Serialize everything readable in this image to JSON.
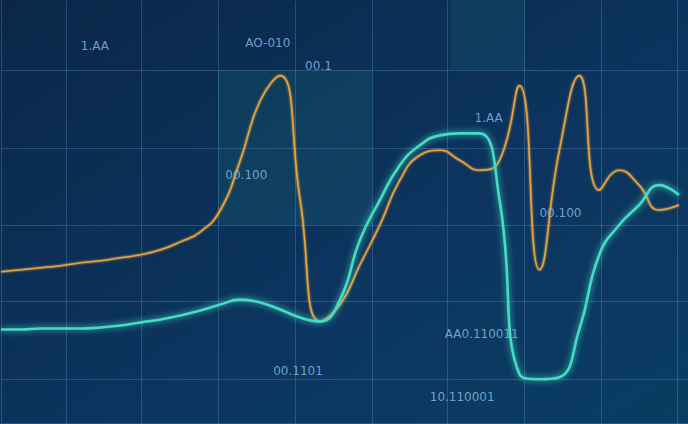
{
  "chart_data": {
    "type": "line",
    "x": [
      0,
      20,
      40,
      60,
      80,
      100,
      120,
      140,
      160,
      180,
      200,
      220,
      240,
      260,
      280,
      300,
      320,
      340,
      360,
      380,
      400,
      420,
      440,
      460,
      480,
      500,
      520,
      540,
      560,
      580,
      600,
      620,
      640,
      660,
      680
    ],
    "series": [
      {
        "color": "#e9a43c",
        "values": [
          152,
          154,
          156,
          158,
          161,
          163,
          166,
          169,
          174,
          182,
          192,
          214,
          264,
          324,
          349,
          224,
          102,
          119,
          159,
          199,
          244,
          269,
          274,
          264,
          254,
          264,
          339,
          154,
          274,
          349,
          234,
          254,
          239,
          214,
          219
        ]
      },
      {
        "color": "#45dcc4",
        "values": [
          94,
          94,
          95,
          95,
          95,
          96,
          98,
          101,
          104,
          108,
          113,
          119,
          124,
          121,
          114,
          106,
          102,
          124,
          184,
          224,
          259,
          279,
          289,
          291,
          291,
          224,
          49,
          44,
          46,
          94,
          169,
          199,
          219,
          239,
          229
        ]
      }
    ],
    "xlim": [
      0,
      688
    ],
    "ylim": [
      0,
      424
    ],
    "xticks": [
      65,
      141,
      218,
      295,
      372,
      448,
      525,
      602,
      678
    ],
    "yticks": [
      44,
      122,
      199,
      276,
      354
    ],
    "grid": true,
    "tick_labels": false,
    "annotations": [
      {
        "text": "1.AA",
        "x": 80,
        "y": 379
      },
      {
        "text": "AO-010",
        "x": 245,
        "y": 382
      },
      {
        "text": "00.1",
        "x": 305,
        "y": 359
      },
      {
        "text": "00.100",
        "x": 225,
        "y": 249
      },
      {
        "text": "1.AA",
        "x": 475,
        "y": 306
      },
      {
        "text": "00.100",
        "x": 540,
        "y": 211
      },
      {
        "text": "00.1101",
        "x": 273,
        "y": 52
      },
      {
        "text": "AA0.110011",
        "x": 445,
        "y": 89
      },
      {
        "text": "10.110001",
        "x": 430,
        "y": 26
      }
    ]
  }
}
